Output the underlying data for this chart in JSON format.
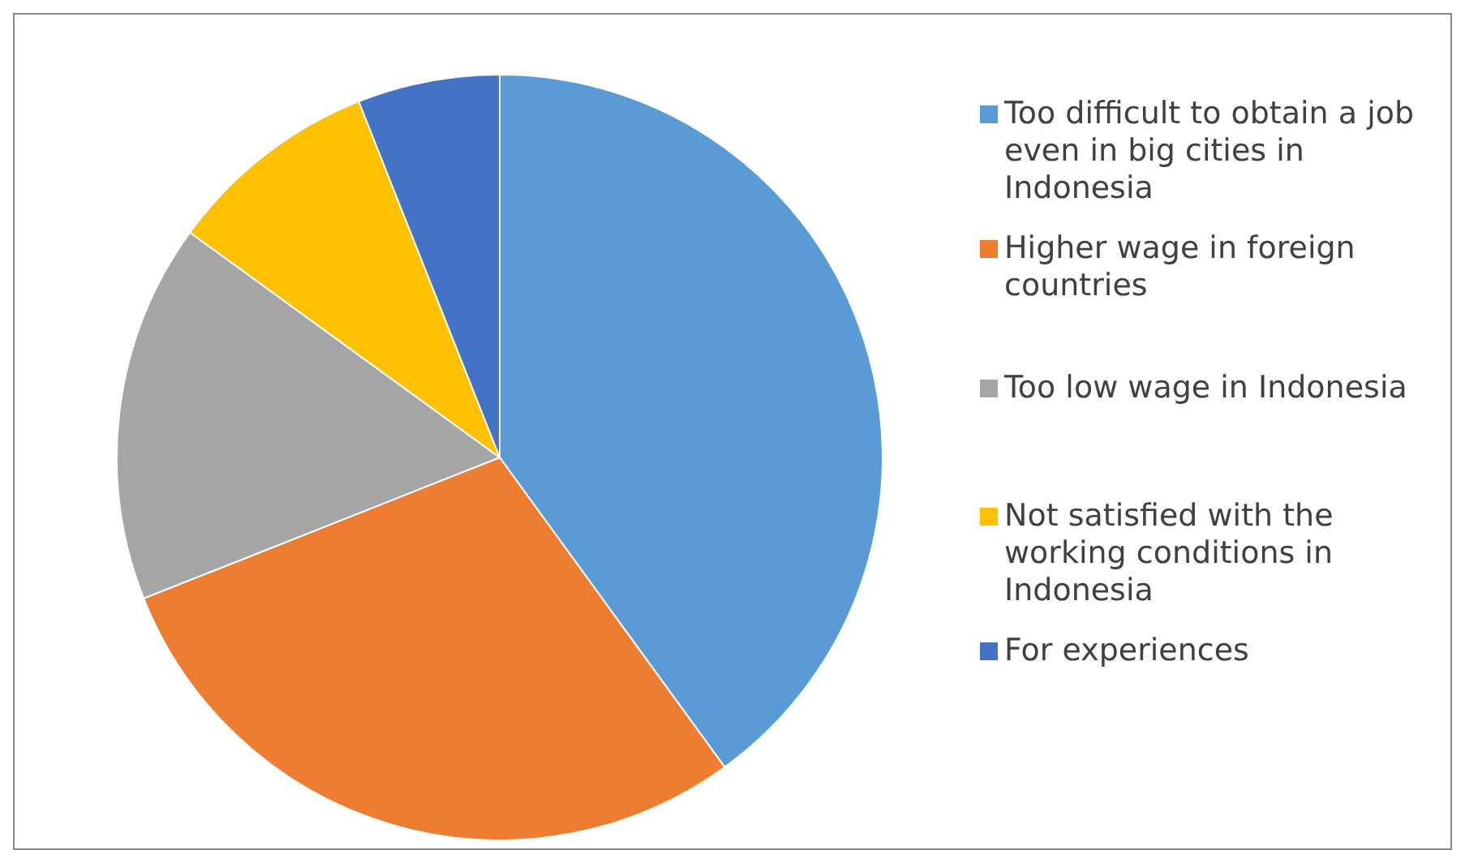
{
  "chart_data": {
    "type": "pie",
    "categories": [
      "Too difficult to obtain a job even in big cities in Indonesia",
      "Higher wage in foreign countries",
      "Too low wage in Indonesia",
      "Not satisfied with the working conditions in Indonesia",
      "For experiences"
    ],
    "values": [
      40,
      29,
      16,
      9,
      6
    ],
    "colors": [
      "#5b9bd5",
      "#ed7d31",
      "#a5a5a5",
      "#ffc000",
      "#4472c4"
    ],
    "legend": "right"
  }
}
